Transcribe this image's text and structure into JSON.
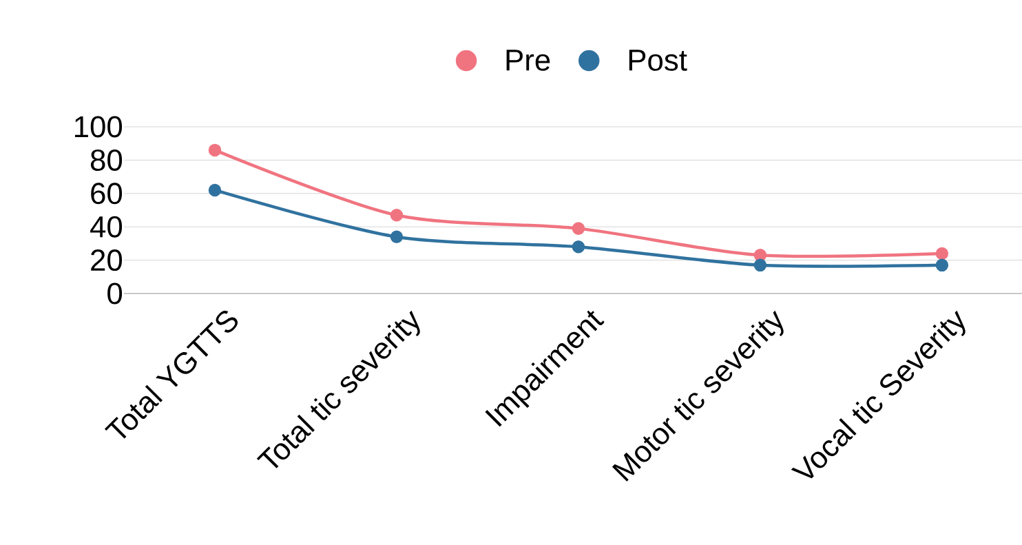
{
  "chart_data": {
    "type": "line",
    "categories": [
      "Total YGTTS",
      "Total tic severity",
      "Impairment",
      "Motor tic severity",
      "Vocal tic Severity"
    ],
    "series": [
      {
        "name": "Pre",
        "color": "#f07480",
        "values": [
          86,
          47,
          39,
          23,
          24
        ]
      },
      {
        "name": "Post",
        "color": "#30729f",
        "values": [
          62,
          34,
          28,
          17,
          17
        ]
      }
    ],
    "ylim": [
      0,
      100
    ],
    "yticks": [
      0,
      20,
      40,
      60,
      80,
      100
    ],
    "grid": "y",
    "legend": "top",
    "marker": "circle",
    "line_style": "solid"
  }
}
